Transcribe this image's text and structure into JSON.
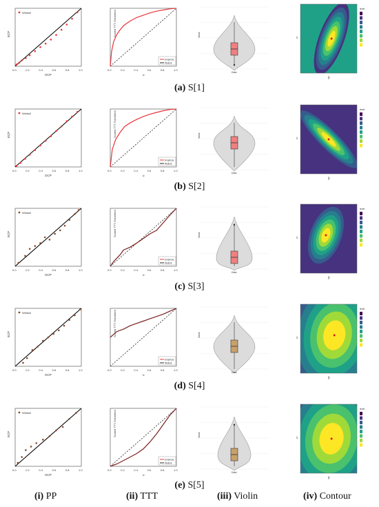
{
  "rows": [
    {
      "label": "(a)",
      "text": " S[1]"
    },
    {
      "label": "(b)",
      "text": " S[2]"
    },
    {
      "label": "(c)",
      "text": " S[3]"
    },
    {
      "label": "(d)",
      "text": " S[4]"
    },
    {
      "label": "(e)",
      "text": " S[5]"
    }
  ],
  "columns": [
    {
      "label": "(i)",
      "text": " PP"
    },
    {
      "label": "(ii)",
      "text": " TTT"
    },
    {
      "label": "(iii)",
      "text": " Violin"
    },
    {
      "label": "(iv)",
      "text": " Contour"
    }
  ],
  "pp": {
    "xlabel": "OCP",
    "ylabel": "ECP",
    "legend": "Weibull",
    "ticks": [
      "0.0",
      "0.2",
      "0.4",
      "0.6",
      "0.8",
      "1.0"
    ]
  },
  "ttt": {
    "xlabel": "u",
    "ylabel": "Scaled TTT-Transform",
    "legend": [
      "Empirical",
      "Weibull"
    ],
    "ticks": [
      "0.0",
      "0.2",
      "0.4",
      "0.6",
      "0.8",
      "1.0"
    ]
  },
  "violin": {
    "xlabel": "Data",
    "ylabel": "Value"
  },
  "contour": {
    "xlabel": "β",
    "ylabel": "λ",
    "legend_title": "level"
  },
  "colors": {
    "accent_red": "#e8333a",
    "violin_fill": "#dcdcdc",
    "box_red": "#f08080",
    "box_brown": "#c8a06a",
    "viridis": [
      "#440154",
      "#46327e",
      "#365c8d",
      "#277f8e",
      "#1fa187",
      "#4ac16d",
      "#a0da39",
      "#fde725"
    ]
  },
  "chart_data": [
    {
      "type": "scatter",
      "title": "",
      "row": "S[1]",
      "x": [
        0.02,
        0.06,
        0.1,
        0.16,
        0.22,
        0.3,
        0.38,
        0.46,
        0.54,
        0.62,
        0.7,
        0.78,
        0.86,
        0.94
      ],
      "y": [
        0.03,
        0.06,
        0.1,
        0.14,
        0.19,
        0.26,
        0.33,
        0.39,
        0.46,
        0.54,
        0.63,
        0.72,
        0.82,
        0.93
      ],
      "xlim": [
        0,
        1
      ],
      "ylim": [
        0,
        1
      ]
    },
    {
      "type": "line",
      "row": "S[1]",
      "series": [
        {
          "name": "Empirical",
          "x": [
            0,
            0.02,
            0.05,
            0.1,
            0.15,
            0.2,
            0.3,
            0.4,
            0.5,
            0.6,
            0.7,
            0.8,
            0.9,
            1.0
          ],
          "y": [
            0,
            0.25,
            0.42,
            0.55,
            0.63,
            0.7,
            0.78,
            0.84,
            0.88,
            0.92,
            0.95,
            0.97,
            0.99,
            1.0
          ]
        }
      ]
    },
    {
      "type": "scatter",
      "row": "S[2]",
      "x": [
        0.02,
        0.08,
        0.15,
        0.22,
        0.3,
        0.38,
        0.46,
        0.54,
        0.62,
        0.7,
        0.78,
        0.86,
        0.94
      ],
      "y": [
        0.02,
        0.07,
        0.14,
        0.21,
        0.29,
        0.37,
        0.45,
        0.53,
        0.62,
        0.7,
        0.79,
        0.87,
        0.95
      ]
    },
    {
      "type": "line",
      "row": "S[2]",
      "series": [
        {
          "name": "Empirical",
          "x": [
            0,
            0.03,
            0.08,
            0.15,
            0.22,
            0.3,
            0.4,
            0.5,
            0.6,
            0.7,
            0.8,
            0.9,
            1.0
          ],
          "y": [
            0,
            0.3,
            0.47,
            0.6,
            0.7,
            0.76,
            0.82,
            0.87,
            0.91,
            0.94,
            0.97,
            0.99,
            1.0
          ]
        }
      ]
    },
    {
      "type": "scatter",
      "row": "S[3]",
      "x": [
        0.05,
        0.15,
        0.22,
        0.3,
        0.38,
        0.45,
        0.52,
        0.6,
        0.68,
        0.75,
        0.82,
        0.9,
        0.96
      ],
      "y": [
        0.06,
        0.18,
        0.3,
        0.35,
        0.4,
        0.5,
        0.46,
        0.56,
        0.62,
        0.7,
        0.8,
        0.9,
        0.97
      ]
    },
    {
      "type": "line",
      "row": "S[3]",
      "series": [
        {
          "name": "Empirical",
          "x": [
            0,
            0.05,
            0.1,
            0.15,
            0.2,
            0.3,
            0.4,
            0.5,
            0.6,
            0.7,
            0.8,
            0.9,
            1.0
          ],
          "y": [
            0,
            0.08,
            0.14,
            0.2,
            0.28,
            0.33,
            0.4,
            0.48,
            0.56,
            0.62,
            0.75,
            0.88,
            1.0
          ]
        }
      ]
    },
    {
      "type": "scatter",
      "row": "S[4]",
      "x": [
        0.12,
        0.18,
        0.26,
        0.34,
        0.42,
        0.5,
        0.58,
        0.66,
        0.74,
        0.82,
        0.9,
        0.98
      ],
      "y": [
        0.06,
        0.14,
        0.28,
        0.34,
        0.44,
        0.5,
        0.56,
        0.62,
        0.7,
        0.8,
        0.88,
        0.98
      ]
    },
    {
      "type": "line",
      "row": "S[4]",
      "series": [
        {
          "name": "Empirical",
          "x": [
            0,
            0.05,
            0.1,
            0.2,
            0.3,
            0.4,
            0.5,
            0.6,
            0.7,
            0.8,
            0.9,
            1.0
          ],
          "y": [
            0.5,
            0.55,
            0.6,
            0.64,
            0.7,
            0.74,
            0.78,
            0.82,
            0.86,
            0.9,
            0.95,
            1.0
          ]
        }
      ]
    },
    {
      "type": "scatter",
      "row": "S[5]",
      "x": [
        0.04,
        0.1,
        0.16,
        0.24,
        0.32,
        0.42,
        0.52,
        0.62,
        0.72,
        0.82,
        0.92
      ],
      "y": [
        0.06,
        0.16,
        0.28,
        0.34,
        0.4,
        0.46,
        0.52,
        0.62,
        0.68,
        0.82,
        0.92
      ]
    },
    {
      "type": "line",
      "row": "S[5]",
      "series": [
        {
          "name": "Empirical",
          "x": [
            0,
            0.1,
            0.2,
            0.3,
            0.4,
            0.5,
            0.6,
            0.7,
            0.8,
            0.9,
            1.0
          ],
          "y": [
            0,
            0.04,
            0.1,
            0.16,
            0.22,
            0.3,
            0.42,
            0.56,
            0.72,
            0.88,
            1.0
          ]
        }
      ]
    }
  ]
}
